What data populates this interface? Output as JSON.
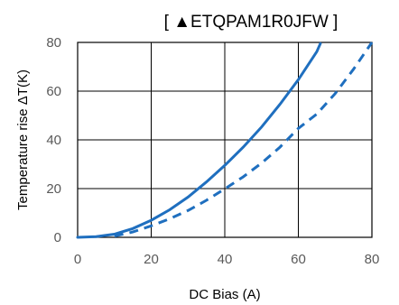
{
  "chart_data": {
    "type": "line",
    "title": "[ ▲ETQPAM1R0JFW ]",
    "xlabel": "DC Bias (A)",
    "ylabel": "Temperature rise ΔT(K)",
    "xlim": [
      0,
      80
    ],
    "ylim": [
      0,
      80
    ],
    "xticks": [
      "0",
      "20",
      "40",
      "60",
      "80"
    ],
    "yticks": [
      "0",
      "20",
      "40",
      "60",
      "80"
    ],
    "grid": true,
    "line_color": "#1f6fbf",
    "series": [
      {
        "style": "solid",
        "x": [
          0,
          5,
          10,
          15,
          20,
          25,
          30,
          35,
          40,
          45,
          50,
          55,
          60,
          65,
          66
        ],
        "y": [
          0,
          0.3,
          1.3,
          3.6,
          7,
          11.3,
          16.5,
          22.7,
          29.5,
          37,
          45.3,
          54.6,
          64.7,
          76.2,
          79.5
        ]
      },
      {
        "style": "dashed",
        "x": [
          10,
          15,
          20,
          25,
          30,
          35,
          40,
          45,
          50,
          55,
          60,
          65,
          70,
          75,
          80
        ],
        "y": [
          0.5,
          2.2,
          4.7,
          7.6,
          11,
          15.2,
          19.9,
          24.8,
          30.5,
          37,
          44.7,
          50.6,
          59,
          69,
          80
        ]
      }
    ]
  }
}
